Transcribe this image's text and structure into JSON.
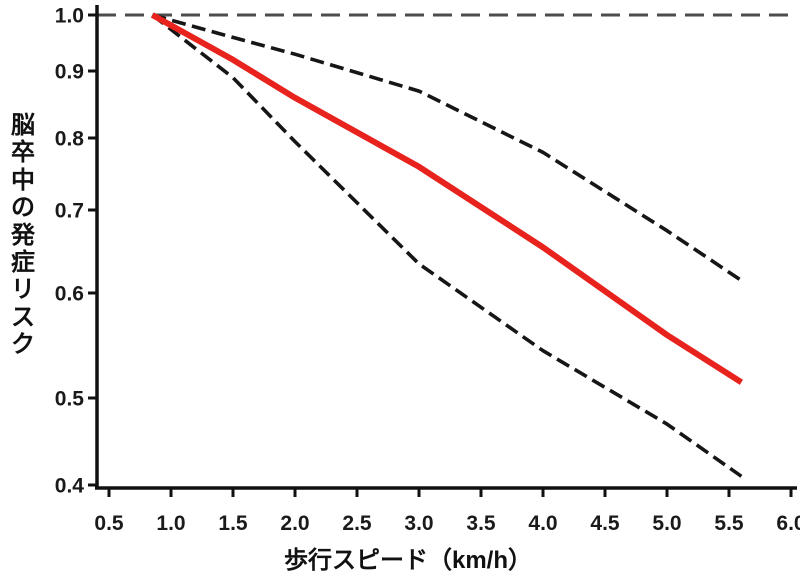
{
  "chart_data": {
    "type": "line",
    "title": "",
    "xlabel": "歩行スピード（km/h）",
    "ylabel": "脳卒中の発症リスク",
    "x_tick_labels": [
      "0.5",
      "1.0",
      "1.5",
      "2.0",
      "2.5",
      "3.0",
      "3.5",
      "4.0",
      "4.5",
      "5.0",
      "5.5",
      "6.0"
    ],
    "y_tick_labels": [
      "1.0",
      "0.9",
      "0.8",
      "0.7",
      "0.6",
      "0.5",
      "0.4"
    ],
    "x_range": [
      0.5,
      6.05
    ],
    "y_range": [
      0.4,
      1.0
    ],
    "y_scale": "nonlinear (log-like spacing)",
    "grid": false,
    "legend": "none",
    "reference_line": {
      "value": 1.0,
      "style": "dashed",
      "color": "#4d4d4d"
    },
    "series": [
      {
        "name": "lower-ci",
        "style": "dashed",
        "color": "#161616",
        "points": [
          [
            0.85,
            1.0
          ],
          [
            1.5,
            0.89
          ],
          [
            2.0,
            0.795
          ],
          [
            3.0,
            0.635
          ],
          [
            4.0,
            0.545
          ],
          [
            5.0,
            0.47
          ],
          [
            5.6,
            0.41
          ]
        ]
      },
      {
        "name": "upper-ci",
        "style": "dashed",
        "color": "#161616",
        "points": [
          [
            0.85,
            1.0
          ],
          [
            1.5,
            0.96
          ],
          [
            2.0,
            0.93
          ],
          [
            3.0,
            0.87
          ],
          [
            4.0,
            0.78
          ],
          [
            5.0,
            0.675
          ],
          [
            5.6,
            0.615
          ]
        ]
      },
      {
        "name": "hazard-ratio",
        "style": "solid",
        "color": "#e8231d",
        "points": [
          [
            0.85,
            1.0
          ],
          [
            1.5,
            0.92
          ],
          [
            2.0,
            0.86
          ],
          [
            3.0,
            0.76
          ],
          [
            4.0,
            0.655
          ],
          [
            5.0,
            0.56
          ],
          [
            5.6,
            0.515
          ]
        ]
      }
    ]
  },
  "colors": {
    "axis": "#111111",
    "text": "#1a1a1a",
    "accent_red": "#e8231d",
    "ci_black": "#161616",
    "reference_gray": "#4d4d4d"
  }
}
